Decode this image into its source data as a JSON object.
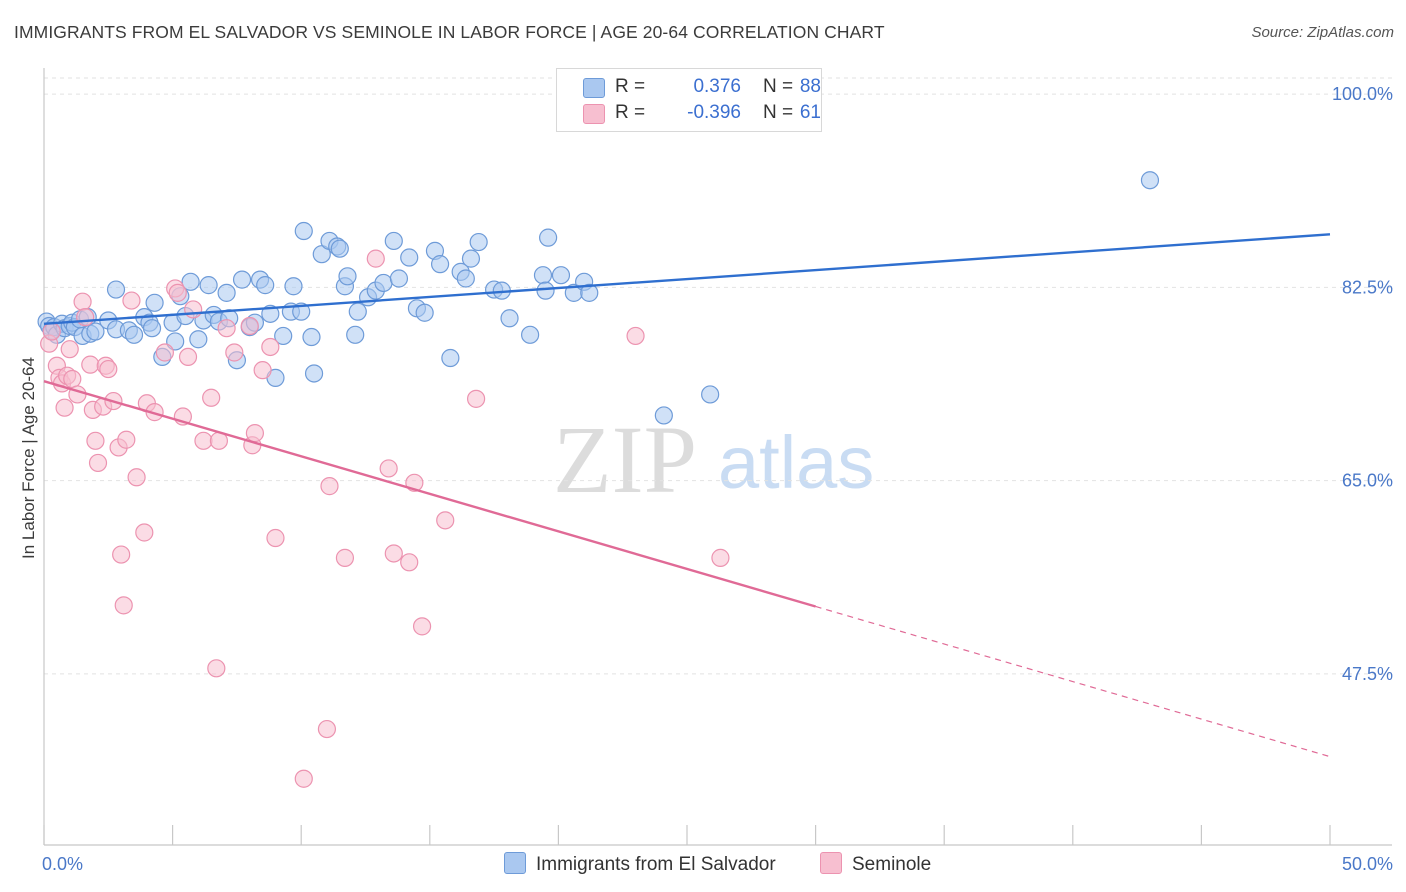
{
  "header": {
    "title": "IMMIGRANTS FROM EL SALVADOR VS SEMINOLE IN LABOR FORCE | AGE 20-64 CORRELATION CHART",
    "source": "Source: ZipAtlas.com"
  },
  "watermark": {
    "zip": "ZIP",
    "atlas": "atlas"
  },
  "legend": {
    "series1": {
      "r_label": "R =",
      "r_value": "0.376",
      "n_label": "N =",
      "n_value": "88"
    },
    "series2": {
      "r_label": "R =",
      "r_value": "-0.396",
      "n_label": "N =",
      "n_value": "61"
    }
  },
  "bottom_legend": {
    "series1": "Immigrants from El Salvador",
    "series2": "Seminole"
  },
  "colors": {
    "blue_fill": "#aac8f0",
    "blue_stroke": "#6e9bd8",
    "blue_line": "#2f6fcf",
    "pink_fill": "#f7bfd0",
    "pink_stroke": "#ec93b0",
    "pink_line": "#e06a96",
    "tick_text": "#4a78c8",
    "grid": "#e2e2e2"
  },
  "chart_data": {
    "type": "scatter",
    "title": "IMMIGRANTS FROM EL SALVADOR VS SEMINOLE IN LABOR FORCE | AGE 20-64 CORRELATION CHART",
    "xlabel": "",
    "ylabel": "In Labor Force | Age 20-64",
    "xlim": [
      0,
      50
    ],
    "ylim": [
      32,
      102
    ],
    "x_tick_labels": {
      "min": "0.0%",
      "max": "50.0%"
    },
    "y_ticks": [
      {
        "value": 100.0,
        "label": "100.0%"
      },
      {
        "value": 82.5,
        "label": "82.5%"
      },
      {
        "value": 65.0,
        "label": "65.0%"
      },
      {
        "value": 47.5,
        "label": "47.5%"
      }
    ],
    "grid": true,
    "series": [
      {
        "name": "Immigrants from El Salvador",
        "color": "#aac8f0",
        "trend": {
          "x": [
            0,
            50
          ],
          "y": [
            79.2,
            87.3
          ],
          "style": "solid"
        },
        "points": [
          [
            0.1,
            79.4
          ],
          [
            0.2,
            79.0
          ],
          [
            0.3,
            78.6
          ],
          [
            0.4,
            78.9
          ],
          [
            0.5,
            78.2
          ],
          [
            0.7,
            79.2
          ],
          [
            0.8,
            78.8
          ],
          [
            1.0,
            79.0
          ],
          [
            1.1,
            79.3
          ],
          [
            1.2,
            78.9
          ],
          [
            1.4,
            79.6
          ],
          [
            1.5,
            78.1
          ],
          [
            1.7,
            79.8
          ],
          [
            1.8,
            78.3
          ],
          [
            2.0,
            78.5
          ],
          [
            2.5,
            79.5
          ],
          [
            2.8,
            78.7
          ],
          [
            3.3,
            78.6
          ],
          [
            3.5,
            78.2
          ],
          [
            2.8,
            82.3
          ],
          [
            3.9,
            79.8
          ],
          [
            4.1,
            79.3
          ],
          [
            4.2,
            78.8
          ],
          [
            4.3,
            81.1
          ],
          [
            4.6,
            76.2
          ],
          [
            5.0,
            79.3
          ],
          [
            5.1,
            77.6
          ],
          [
            5.3,
            81.7
          ],
          [
            5.5,
            79.9
          ],
          [
            5.7,
            83.0
          ],
          [
            6.0,
            77.8
          ],
          [
            6.2,
            79.5
          ],
          [
            6.4,
            82.7
          ],
          [
            6.6,
            80.0
          ],
          [
            6.8,
            79.4
          ],
          [
            7.1,
            82.0
          ],
          [
            7.2,
            79.7
          ],
          [
            7.5,
            75.9
          ],
          [
            7.7,
            83.2
          ],
          [
            8.0,
            78.9
          ],
          [
            8.2,
            79.3
          ],
          [
            8.4,
            83.2
          ],
          [
            8.6,
            82.7
          ],
          [
            8.8,
            80.1
          ],
          [
            9.0,
            74.3
          ],
          [
            9.3,
            78.1
          ],
          [
            9.6,
            80.3
          ],
          [
            9.7,
            82.6
          ],
          [
            10.0,
            80.3
          ],
          [
            10.1,
            87.6
          ],
          [
            10.4,
            78.0
          ],
          [
            10.5,
            74.7
          ],
          [
            10.8,
            85.5
          ],
          [
            11.1,
            86.7
          ],
          [
            11.4,
            86.2
          ],
          [
            11.5,
            86.0
          ],
          [
            11.7,
            82.6
          ],
          [
            11.8,
            83.5
          ],
          [
            12.1,
            78.2
          ],
          [
            12.2,
            80.3
          ],
          [
            12.6,
            81.6
          ],
          [
            12.9,
            82.2
          ],
          [
            13.2,
            82.9
          ],
          [
            13.6,
            86.7
          ],
          [
            13.8,
            83.3
          ],
          [
            14.2,
            85.2
          ],
          [
            14.5,
            80.6
          ],
          [
            14.8,
            80.2
          ],
          [
            15.2,
            85.8
          ],
          [
            15.4,
            84.6
          ],
          [
            15.8,
            76.1
          ],
          [
            16.2,
            83.9
          ],
          [
            16.4,
            83.3
          ],
          [
            16.6,
            85.1
          ],
          [
            16.9,
            86.6
          ],
          [
            17.5,
            82.3
          ],
          [
            17.8,
            82.2
          ],
          [
            18.1,
            79.7
          ],
          [
            18.9,
            78.2
          ],
          [
            19.4,
            83.6
          ],
          [
            19.5,
            82.2
          ],
          [
            19.6,
            87.0
          ],
          [
            20.1,
            83.6
          ],
          [
            20.6,
            82.0
          ],
          [
            21.0,
            83.0
          ],
          [
            21.2,
            82.0
          ],
          [
            24.1,
            70.9
          ],
          [
            25.9,
            72.8
          ],
          [
            43.0,
            92.2
          ]
        ]
      },
      {
        "name": "Seminole",
        "color": "#f7bfd0",
        "trend": {
          "x": [
            0,
            30
          ],
          "y": [
            74.0,
            53.6
          ],
          "style": "solid",
          "extended": {
            "x": [
              30,
              50
            ],
            "y": [
              53.6,
              40.0
            ],
            "style": "dashed"
          }
        },
        "points": [
          [
            0.2,
            77.4
          ],
          [
            0.3,
            78.5
          ],
          [
            0.5,
            75.4
          ],
          [
            0.6,
            74.3
          ],
          [
            0.7,
            73.8
          ],
          [
            0.8,
            71.6
          ],
          [
            0.9,
            74.5
          ],
          [
            1.0,
            76.9
          ],
          [
            1.1,
            74.2
          ],
          [
            1.3,
            72.8
          ],
          [
            1.5,
            81.2
          ],
          [
            1.6,
            79.8
          ],
          [
            1.8,
            75.5
          ],
          [
            1.9,
            71.4
          ],
          [
            2.0,
            68.6
          ],
          [
            2.1,
            66.6
          ],
          [
            2.3,
            71.7
          ],
          [
            2.4,
            75.4
          ],
          [
            2.5,
            75.1
          ],
          [
            2.7,
            72.2
          ],
          [
            2.9,
            68.0
          ],
          [
            3.0,
            58.3
          ],
          [
            3.1,
            53.7
          ],
          [
            3.2,
            68.7
          ],
          [
            3.4,
            81.3
          ],
          [
            3.6,
            65.3
          ],
          [
            3.9,
            60.3
          ],
          [
            4.0,
            72.0
          ],
          [
            4.3,
            71.2
          ],
          [
            4.7,
            76.6
          ],
          [
            5.1,
            82.4
          ],
          [
            5.2,
            82.0
          ],
          [
            5.4,
            70.8
          ],
          [
            5.6,
            76.2
          ],
          [
            5.8,
            80.5
          ],
          [
            6.2,
            68.6
          ],
          [
            6.5,
            72.5
          ],
          [
            6.7,
            48.0
          ],
          [
            6.8,
            68.6
          ],
          [
            7.1,
            78.8
          ],
          [
            7.4,
            76.6
          ],
          [
            8.1,
            68.2
          ],
          [
            8.2,
            69.3
          ],
          [
            8.5,
            75.0
          ],
          [
            8.8,
            77.1
          ],
          [
            9.0,
            59.8
          ],
          [
            10.1,
            38.0
          ],
          [
            11.0,
            42.5
          ],
          [
            11.1,
            64.5
          ],
          [
            11.7,
            58.0
          ],
          [
            12.9,
            85.1
          ],
          [
            13.4,
            66.1
          ],
          [
            13.6,
            58.4
          ],
          [
            14.2,
            57.6
          ],
          [
            14.4,
            64.8
          ],
          [
            14.7,
            51.8
          ],
          [
            15.6,
            61.4
          ],
          [
            16.8,
            72.4
          ],
          [
            23.0,
            78.1
          ],
          [
            26.3,
            58.0
          ],
          [
            8.0,
            79.0
          ]
        ]
      }
    ]
  }
}
